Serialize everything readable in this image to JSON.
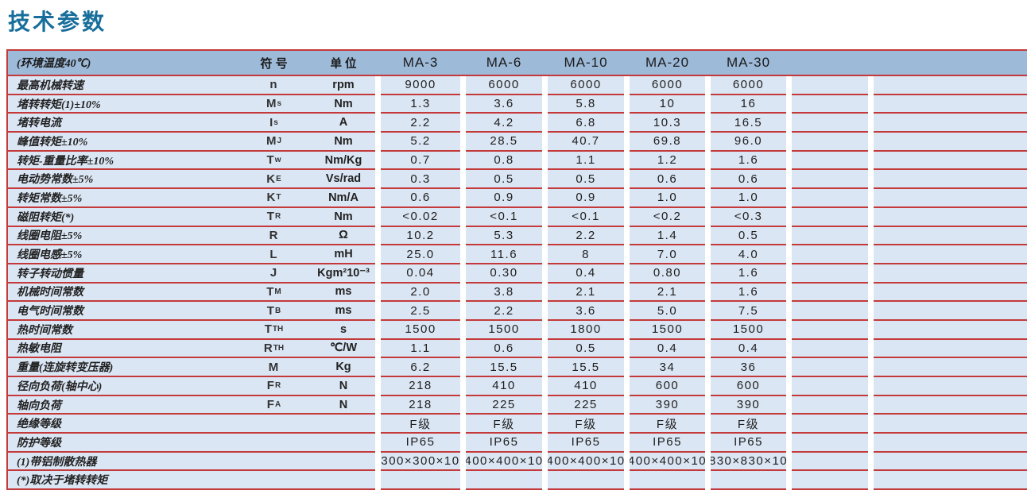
{
  "page_title": "技术参数",
  "colors": {
    "title_text": "#186E9B",
    "header_bg": "#9DBAD9",
    "row_bg": "#DBE6F4",
    "rule_red": "#C43A3A"
  },
  "table": {
    "header": {
      "param_col": "(环境温度40℃)",
      "symbol_col": "符 号",
      "unit_col": "单 位",
      "models": [
        "MA-3",
        "MA-6",
        "MA-10",
        "MA-20",
        "MA-30"
      ]
    },
    "rows": [
      {
        "label": "最高机械转速",
        "symbol": "n",
        "symbol_sub": "",
        "unit": "rpm",
        "values": [
          "9000",
          "6000",
          "6000",
          "6000",
          "6000",
          "",
          ""
        ]
      },
      {
        "label": "堵转转矩(1)±10%",
        "symbol": "M",
        "symbol_sub": "s",
        "unit": "Nm",
        "values": [
          "1.3",
          "3.6",
          "5.8",
          "10",
          "16",
          "",
          ""
        ]
      },
      {
        "label": "堵转电流",
        "symbol": "I",
        "symbol_sub": "s",
        "unit": "A",
        "values": [
          "2.2",
          "4.2",
          "6.8",
          "10.3",
          "16.5",
          "",
          ""
        ]
      },
      {
        "label": "峰值转矩±10%",
        "symbol": "M",
        "symbol_sub": "J",
        "unit": "Nm",
        "values": [
          "5.2",
          "28.5",
          "40.7",
          "69.8",
          "96.0",
          "",
          ""
        ]
      },
      {
        "label": "转矩-重量比率±10%",
        "symbol": "T",
        "symbol_sub": "w",
        "unit": "Nm/Kg",
        "values": [
          "0.7",
          "0.8",
          "1.1",
          "1.2",
          "1.6",
          "",
          ""
        ]
      },
      {
        "label": "电动势常数±5%",
        "symbol": "K",
        "symbol_sub": "E",
        "unit": "Vs/rad",
        "values": [
          "0.3",
          "0.5",
          "0.5",
          "0.6",
          "0.6",
          "",
          ""
        ]
      },
      {
        "label": "转矩常数±5%",
        "symbol": "K",
        "symbol_sub": "T",
        "unit": "Nm/A",
        "values": [
          "0.6",
          "0.9",
          "0.9",
          "1.0",
          "1.0",
          "",
          ""
        ]
      },
      {
        "label": "磁阻转矩(*)",
        "symbol": "T",
        "symbol_sub": "R",
        "unit": "Nm",
        "values": [
          "<0.02",
          "<0.1",
          "<0.1",
          "<0.2",
          "<0.3",
          "",
          ""
        ]
      },
      {
        "label": "线圈电阻±5%",
        "symbol": "R",
        "symbol_sub": "",
        "unit": "Ω",
        "values": [
          "10.2",
          "5.3",
          "2.2",
          "1.4",
          "0.5",
          "",
          ""
        ]
      },
      {
        "label": "线圈电感±5%",
        "symbol": "L",
        "symbol_sub": "",
        "unit": "mH",
        "values": [
          "25.0",
          "11.6",
          "8",
          "7.0",
          "4.0",
          "",
          ""
        ]
      },
      {
        "label": "转子转动惯量",
        "symbol": "J",
        "symbol_sub": "",
        "unit": "Kgm²10⁻³",
        "values": [
          "0.04",
          "0.30",
          "0.4",
          "0.80",
          "1.6",
          "",
          ""
        ]
      },
      {
        "label": "机械时间常数",
        "symbol": "T",
        "symbol_sub": "M",
        "unit": "ms",
        "values": [
          "2.0",
          "3.8",
          "2.1",
          "2.1",
          "1.6",
          "",
          ""
        ]
      },
      {
        "label": "电气时间常数",
        "symbol": "T",
        "symbol_sub": "B",
        "unit": "ms",
        "values": [
          "2.5",
          "2.2",
          "3.6",
          "5.0",
          "7.5",
          "",
          ""
        ]
      },
      {
        "label": "热时间常数",
        "symbol": "T",
        "symbol_sub": "TH",
        "unit": "s",
        "values": [
          "1500",
          "1500",
          "1800",
          "1500",
          "1500",
          "",
          ""
        ]
      },
      {
        "label": "热敏电阻",
        "symbol": "R",
        "symbol_sub": "TH",
        "unit": "℃/W",
        "values": [
          "1.1",
          "0.6",
          "0.5",
          "0.4",
          "0.4",
          "",
          ""
        ]
      },
      {
        "label": "重量(连旋转变压器)",
        "symbol": "M",
        "symbol_sub": "",
        "unit": "Kg",
        "values": [
          "6.2",
          "15.5",
          "15.5",
          "34",
          "36",
          "",
          ""
        ]
      },
      {
        "label": "径向负荷(轴中心)",
        "symbol": "F",
        "symbol_sub": "R",
        "unit": "N",
        "values": [
          "218",
          "410",
          "410",
          "600",
          "600",
          "",
          ""
        ]
      },
      {
        "label": "轴向负荷",
        "symbol": "F",
        "symbol_sub": "A",
        "unit": "N",
        "values": [
          "218",
          "225",
          "225",
          "390",
          "390",
          "",
          ""
        ]
      },
      {
        "label": "绝缘等级",
        "symbol": "",
        "symbol_sub": "",
        "unit": "",
        "values": [
          "F级",
          "F级",
          "F级",
          "F级",
          "F级",
          "",
          ""
        ]
      },
      {
        "label": "防护等级",
        "symbol": "",
        "symbol_sub": "",
        "unit": "",
        "values": [
          "IP65",
          "IP65",
          "IP65",
          "IP65",
          "IP65",
          "",
          ""
        ]
      },
      {
        "label": "(1)带铝制散热器",
        "symbol": "",
        "symbol_sub": "",
        "unit": "",
        "values": [
          "300×300×10",
          "400×400×10",
          "400×400×10",
          "400×400×10",
          "830×830×10",
          "",
          ""
        ]
      },
      {
        "label": "(*)取决于堵转转矩",
        "symbol": "",
        "symbol_sub": "",
        "unit": "",
        "values": [
          "",
          "",
          "",
          "",
          "",
          "",
          ""
        ]
      }
    ]
  }
}
